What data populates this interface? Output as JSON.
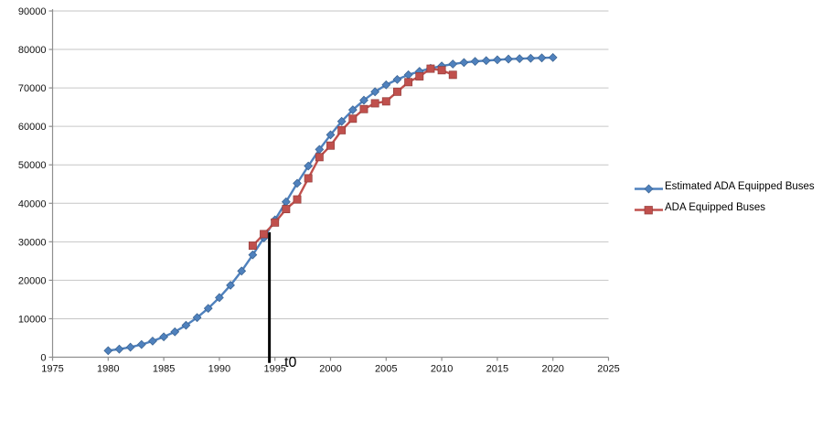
{
  "chart_data": {
    "type": "line",
    "title": "",
    "xlabel": "",
    "ylabel": "",
    "xlim": [
      1975,
      2025
    ],
    "ylim": [
      0,
      90000
    ],
    "x_ticks": [
      1975,
      1980,
      1985,
      1990,
      1995,
      2000,
      2005,
      2010,
      2015,
      2020,
      2025
    ],
    "y_ticks": [
      0,
      10000,
      20000,
      30000,
      40000,
      50000,
      60000,
      70000,
      80000,
      90000
    ],
    "grid": "horizontal-only",
    "legend_position": "right-middle",
    "style": {
      "grid_color": "#c6c6c6",
      "axis_color": "#8e8e8e",
      "tick_label_color": "#111111",
      "annotation_color": "#000000"
    },
    "annotation": {
      "label": "t0",
      "x_year": 1994.5,
      "top_value": 32500,
      "bottom_value": -1500
    },
    "series": [
      {
        "name": "Estimated ADA Equipped Buses",
        "color": "#4f81bd",
        "marker": "diamond",
        "x": [
          1980,
          1981,
          1982,
          1983,
          1984,
          1985,
          1986,
          1987,
          1988,
          1989,
          1990,
          1991,
          1992,
          1993,
          1994,
          1995,
          1996,
          1997,
          1998,
          1999,
          2000,
          2001,
          2002,
          2003,
          2004,
          2005,
          2006,
          2007,
          2008,
          2009,
          2010,
          2011,
          2012,
          2013,
          2014,
          2015,
          2016,
          2017,
          2018,
          2019,
          2020
        ],
        "values": [
          1700,
          2100,
          2600,
          3300,
          4200,
          5300,
          6600,
          8300,
          10300,
          12700,
          15500,
          18700,
          22400,
          26600,
          31000,
          35700,
          40400,
          45200,
          49700,
          54000,
          57800,
          61300,
          64300,
          66800,
          69000,
          70800,
          72200,
          73400,
          74300,
          75100,
          75700,
          76200,
          76600,
          76900,
          77100,
          77300,
          77500,
          77600,
          77700,
          77800,
          77900
        ]
      },
      {
        "name": "ADA Equipped Buses",
        "color": "#c0504d",
        "marker": "square",
        "x": [
          1993,
          1994,
          1995,
          1996,
          1997,
          1998,
          1999,
          2000,
          2001,
          2002,
          2003,
          2004,
          2005,
          2006,
          2007,
          2008,
          2009,
          2010,
          2011
        ],
        "values": [
          29000,
          32000,
          35000,
          38500,
          41000,
          46500,
          52000,
          55000,
          59000,
          62000,
          64500,
          66000,
          66500,
          69000,
          71500,
          73000,
          75000,
          74600,
          73400
        ]
      }
    ]
  }
}
